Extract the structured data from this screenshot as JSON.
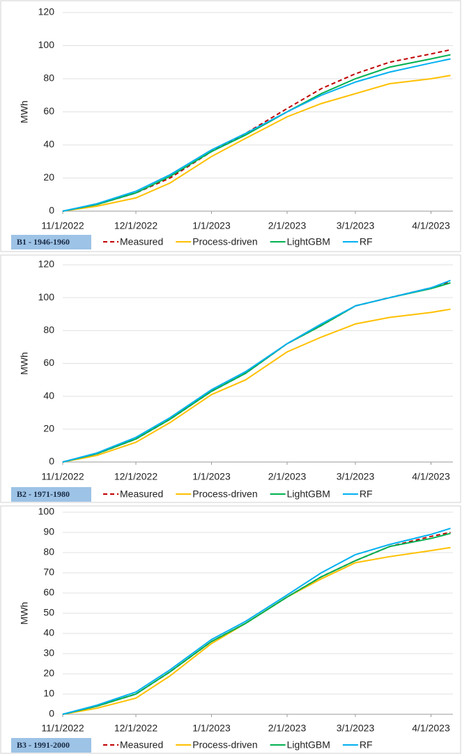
{
  "chart_data": [
    {
      "type": "line",
      "title": "B1 - 1946-1960",
      "ylabel": "MWh",
      "x": [
        "11/1/2022",
        "11/15/2022",
        "12/1/2022",
        "12/15/2022",
        "1/1/2023",
        "1/15/2023",
        "2/1/2023",
        "2/15/2023",
        "3/1/2023",
        "3/15/2023",
        "4/1/2023",
        "4/9/2023"
      ],
      "xlim": [
        "11/1/2022",
        "4/10/2023"
      ],
      "xticks": [
        "11/1/2022",
        "12/1/2022",
        "1/1/2023",
        "2/1/2023",
        "3/1/2023",
        "4/1/2023"
      ],
      "ylim": [
        0,
        120
      ],
      "yticks": [
        0,
        20,
        40,
        60,
        80,
        100,
        120
      ],
      "grid": true,
      "series": [
        {
          "name": "Measured",
          "color": "#c00000",
          "dashed": true,
          "values": [
            0,
            4,
            11,
            20,
            36,
            47,
            62,
            74,
            83,
            90,
            95,
            97.5
          ]
        },
        {
          "name": "Process-driven",
          "color": "#ffc000",
          "values": [
            0,
            3,
            8,
            17,
            33,
            44,
            57,
            65,
            71,
            77,
            80,
            82
          ]
        },
        {
          "name": "LightGBM",
          "color": "#00b050",
          "values": [
            0,
            4,
            11,
            21,
            36,
            46,
            60,
            71,
            80,
            87,
            92,
            94.5
          ]
        },
        {
          "name": "RF",
          "color": "#00b0f0",
          "values": [
            0,
            4.5,
            12,
            22,
            37,
            47,
            60,
            70,
            78,
            84,
            89.5,
            92
          ]
        }
      ]
    },
    {
      "type": "line",
      "title": "B2 - 1971-1980",
      "ylabel": "MWh",
      "x": [
        "11/1/2022",
        "11/15/2022",
        "12/1/2022",
        "12/15/2022",
        "1/1/2023",
        "1/15/2023",
        "2/1/2023",
        "2/15/2023",
        "3/1/2023",
        "3/15/2023",
        "4/1/2023",
        "4/9/2023"
      ],
      "xlim": [
        "11/1/2022",
        "4/10/2023"
      ],
      "xticks": [
        "11/1/2022",
        "12/1/2022",
        "1/1/2023",
        "2/1/2023",
        "3/1/2023",
        "4/1/2023"
      ],
      "ylim": [
        0,
        120
      ],
      "yticks": [
        0,
        20,
        40,
        60,
        80,
        100,
        120
      ],
      "grid": true,
      "series": [
        {
          "name": "Measured",
          "color": "#c00000",
          "dashed": true,
          "values": [
            0,
            5,
            14,
            26,
            43,
            54,
            72,
            83,
            95,
            100,
            106,
            109.5
          ]
        },
        {
          "name": "Process-driven",
          "color": "#ffc000",
          "values": [
            0,
            4,
            12,
            24,
            41,
            50,
            67,
            76,
            84,
            88,
            91,
            93
          ]
        },
        {
          "name": "LightGBM",
          "color": "#00b050",
          "values": [
            0,
            5,
            14,
            26,
            43,
            54,
            72,
            83,
            95,
            100,
            105.5,
            109
          ]
        },
        {
          "name": "RF",
          "color": "#00b0f0",
          "values": [
            0,
            5.5,
            15,
            27,
            44,
            55,
            72,
            84,
            95,
            100,
            106,
            110.5
          ]
        }
      ]
    },
    {
      "type": "line",
      "title": "B3 - 1991-2000",
      "ylabel": "MWh",
      "x": [
        "11/1/2022",
        "11/15/2022",
        "12/1/2022",
        "12/15/2022",
        "1/1/2023",
        "1/15/2023",
        "2/1/2023",
        "2/15/2023",
        "3/1/2023",
        "3/15/2023",
        "4/1/2023",
        "4/9/2023"
      ],
      "xlim": [
        "11/1/2022",
        "4/10/2023"
      ],
      "xticks": [
        "11/1/2022",
        "12/1/2022",
        "1/1/2023",
        "2/1/2023",
        "3/1/2023",
        "4/1/2023"
      ],
      "ylim": [
        0,
        100
      ],
      "yticks": [
        0,
        10,
        20,
        30,
        40,
        50,
        60,
        70,
        80,
        90,
        100
      ],
      "grid": true,
      "series": [
        {
          "name": "Measured",
          "color": "#c00000",
          "dashed": true,
          "values": [
            0,
            4,
            10,
            21,
            36,
            45,
            58,
            68,
            76,
            83,
            88,
            90
          ]
        },
        {
          "name": "Process-driven",
          "color": "#ffc000",
          "values": [
            0,
            3,
            8,
            19,
            35,
            45,
            58,
            67,
            75,
            78,
            81,
            82.5
          ]
        },
        {
          "name": "LightGBM",
          "color": "#00b050",
          "values": [
            0,
            4,
            10,
            21,
            36,
            45,
            58,
            68,
            76,
            83,
            87,
            89.5
          ]
        },
        {
          "name": "RF",
          "color": "#00b0f0",
          "values": [
            0,
            4.5,
            11,
            22,
            37,
            46,
            59,
            70,
            79,
            84,
            89,
            92
          ]
        }
      ]
    }
  ]
}
